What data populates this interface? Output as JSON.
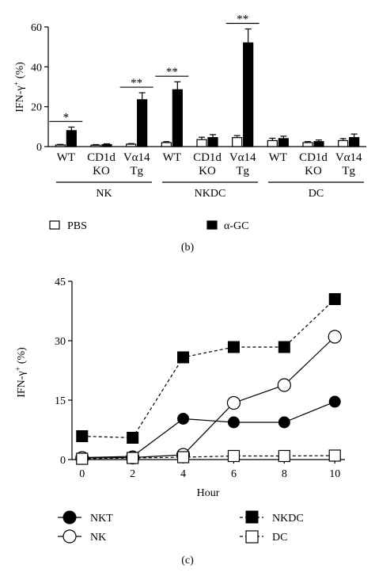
{
  "panel_b": {
    "caption": "(b)",
    "legend": {
      "pbs": "PBS",
      "agc": "α-GC"
    },
    "group_labels": [
      "NK",
      "NKDC",
      "DC"
    ]
  },
  "panel_c": {
    "caption": "(c)",
    "legend": {
      "nkt": "NKT",
      "nk": "NK",
      "nkdc": "NKDC",
      "dc": "DC"
    }
  },
  "chart_data": [
    {
      "type": "bar",
      "ylabel": "IFN-γ+ (%)",
      "ylim": [
        0,
        60
      ],
      "yticks": [
        0,
        20,
        40,
        60
      ],
      "categories": [
        {
          "group": "NK",
          "label": [
            "WT"
          ]
        },
        {
          "group": "NK",
          "label": [
            "CD1d",
            "KO"
          ]
        },
        {
          "group": "NK",
          "label": [
            "Vα14",
            "Tg"
          ]
        },
        {
          "group": "NKDC",
          "label": [
            "WT"
          ]
        },
        {
          "group": "NKDC",
          "label": [
            "CD1d",
            "KO"
          ]
        },
        {
          "group": "NKDC",
          "label": [
            "Vα14",
            "Tg"
          ]
        },
        {
          "group": "DC",
          "label": [
            "WT"
          ]
        },
        {
          "group": "DC",
          "label": [
            "CD1d",
            "KO"
          ]
        },
        {
          "group": "DC",
          "label": [
            "Vα14",
            "Tg"
          ]
        }
      ],
      "series": [
        {
          "name": "PBS",
          "fill": "#ffffff",
          "values": [
            0.8,
            0.7,
            1.2,
            2.0,
            3.5,
            4.5,
            3.0,
            2.0,
            3.0
          ],
          "errors": [
            0.3,
            0.3,
            0.3,
            0.5,
            1.2,
            1.0,
            1.2,
            0.5,
            1.0
          ]
        },
        {
          "name": "α-GC",
          "fill": "#000000",
          "values": [
            8.0,
            1.0,
            23.5,
            28.5,
            4.5,
            52.0,
            4.0,
            2.5,
            4.5
          ],
          "errors": [
            1.8,
            0.4,
            3.5,
            4.0,
            1.5,
            7.0,
            1.2,
            0.8,
            1.8
          ]
        }
      ],
      "significance": [
        {
          "category": 0,
          "label": "*"
        },
        {
          "category": 2,
          "label": "**"
        },
        {
          "category": 3,
          "label": "**"
        },
        {
          "category": 5,
          "label": "**"
        }
      ]
    },
    {
      "type": "line",
      "xlabel": "Hour",
      "ylabel": "IFN-γ+ (%)",
      "x": [
        0,
        2,
        4,
        6,
        8,
        10
      ],
      "xlim": [
        -0.4,
        10.4
      ],
      "ylim": [
        0,
        45
      ],
      "yticks": [
        0,
        15,
        30,
        45
      ],
      "series": [
        {
          "name": "NKT",
          "marker": "filled-circle",
          "line": "solid",
          "values": [
            0.5,
            0.8,
            10.3,
            9.4,
            9.4,
            14.6
          ]
        },
        {
          "name": "NK",
          "marker": "open-circle",
          "line": "solid",
          "values": [
            0.4,
            0.5,
            1.2,
            14.3,
            18.8,
            31.0
          ]
        },
        {
          "name": "NKDC",
          "marker": "filled-square",
          "line": "dashed",
          "values": [
            5.9,
            5.5,
            25.8,
            28.4,
            28.4,
            40.5
          ]
        },
        {
          "name": "DC",
          "marker": "open-square",
          "line": "dashed",
          "values": [
            0.2,
            0.4,
            0.6,
            0.9,
            0.9,
            1.0
          ]
        }
      ]
    }
  ]
}
